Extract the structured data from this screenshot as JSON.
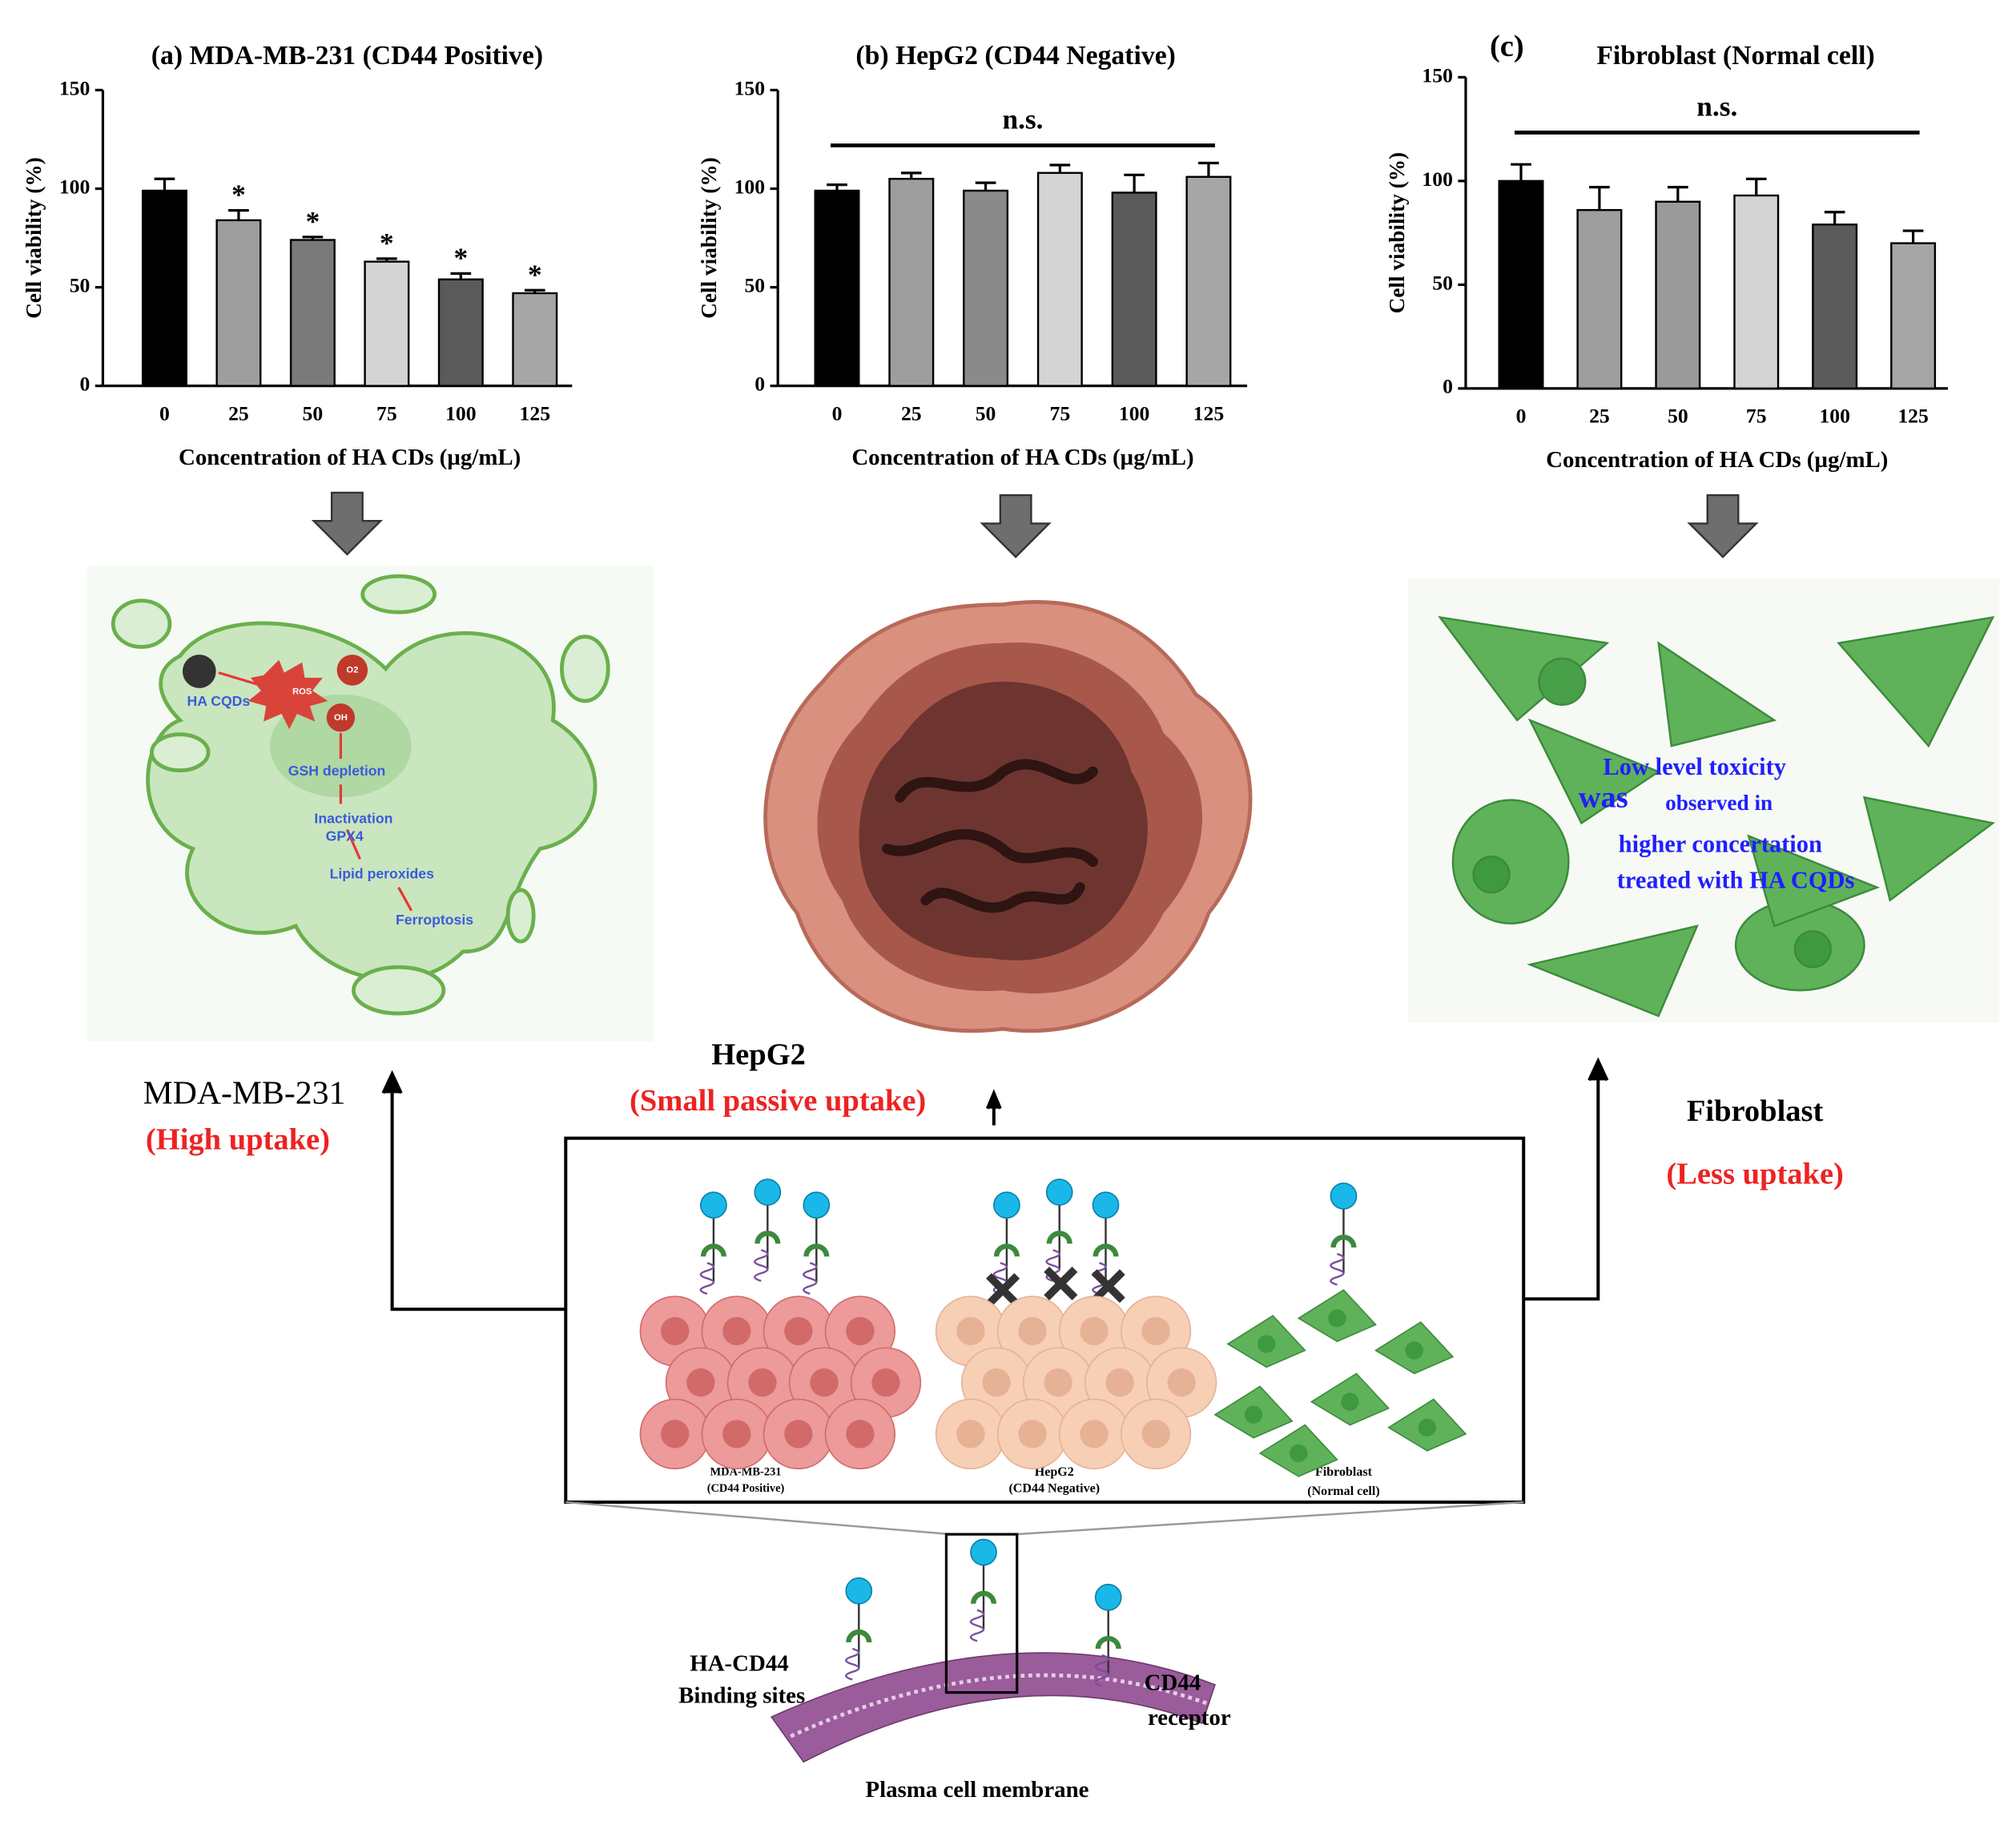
{
  "chart_data": [
    {
      "type": "bar",
      "title": "(a) MDA-MB-231 (CD44 Positive)",
      "x_label": "Concentration of HA CDs (µg/mL)",
      "y_label": "Cell viability (%)",
      "categories": [
        "0",
        "25",
        "50",
        "75",
        "100",
        "125"
      ],
      "values": [
        99,
        84,
        74,
        63,
        54,
        47
      ],
      "errors": [
        6,
        5,
        1.5,
        1.5,
        3,
        1.5
      ],
      "colors": [
        "#000000",
        "#9e9e9e",
        "#7a7a7a",
        "#d4d4d4",
        "#5a5a5a",
        "#a6a6a6"
      ],
      "significance": [
        null,
        "*",
        "*",
        "*",
        "*",
        "*"
      ],
      "ylim": [
        0,
        150
      ],
      "yticks": [
        0,
        50,
        100,
        150
      ]
    },
    {
      "type": "bar",
      "title": "(b) HepG2 (CD44 Negative)",
      "x_label": "Concentration of HA CDs (µg/mL)",
      "y_label": "Cell viability (%)",
      "categories": [
        "0",
        "25",
        "50",
        "75",
        "100",
        "125"
      ],
      "values": [
        99,
        105,
        99,
        108,
        98,
        106
      ],
      "errors": [
        3,
        3,
        4,
        4,
        9,
        7
      ],
      "colors": [
        "#000000",
        "#9e9e9e",
        "#8a8a8a",
        "#d4d4d4",
        "#5a5a5a",
        "#a6a6a6"
      ],
      "annotation": "n.s.",
      "ylim": [
        0,
        150
      ],
      "yticks": [
        0,
        50,
        100,
        150
      ]
    },
    {
      "type": "bar",
      "panel_label": "(c)",
      "title": "Fibroblast (Normal cell)",
      "x_label": "Concentration of HA CDs (µg/mL)",
      "y_label": "Cell viability (%)",
      "categories": [
        "0",
        "25",
        "50",
        "75",
        "100",
        "125"
      ],
      "values": [
        100,
        86,
        90,
        93,
        79,
        70
      ],
      "errors": [
        8,
        11,
        7,
        8,
        6,
        6
      ],
      "colors": [
        "#000000",
        "#9e9e9e",
        "#9a9a9a",
        "#d4d4d4",
        "#5a5a5a",
        "#a6a6a6"
      ],
      "annotation": "n.s.",
      "ylim": [
        0,
        150
      ],
      "yticks": [
        0,
        50,
        100,
        150
      ]
    }
  ],
  "ferroptosis_panel": {
    "ha_cqds": "HA CQDs",
    "ros": "ROS",
    "o2": "O2",
    "oh": "OH",
    "steps": [
      "GSH depletion",
      "Inactivation",
      "GPX4",
      "Lipid peroxides",
      "Ferroptosis"
    ]
  },
  "uptake": {
    "mda": {
      "name": "MDA-MB-231",
      "label": "(High uptake)"
    },
    "hepg2": {
      "name": "HepG2",
      "label": "(Small passive uptake)"
    },
    "fibroblast": {
      "name": "Fibroblast",
      "label": "(Less uptake)"
    }
  },
  "toxicity_note": [
    "Low level toxicity",
    "was",
    "observed in",
    "higher concertation",
    "treated with HA CQDs"
  ],
  "binding_box": {
    "cells": [
      {
        "name": "MDA-MB-231",
        "note": "(CD44 Positive)"
      },
      {
        "name": "HepG2",
        "note": "(CD44 Negative)"
      },
      {
        "name": "Fibroblast",
        "note": "(Normal cell)"
      }
    ]
  },
  "membrane": {
    "binding_label": [
      "HA-CD44",
      "Binding sites"
    ],
    "receptor_label": [
      "CD44",
      "receptor"
    ],
    "title": "Plasma cell membrane"
  }
}
